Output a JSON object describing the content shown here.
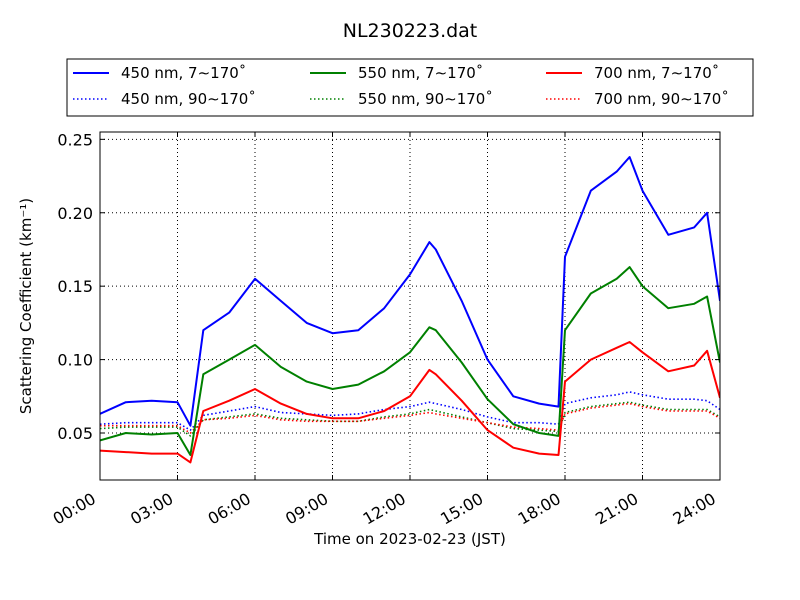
{
  "chart_data": {
    "type": "line",
    "title": "NL230223.dat",
    "xlabel": "Time on 2023-02-23 (JST)",
    "ylabel": "Scattering Coefficient (km⁻¹)",
    "xlim": [
      "00:00",
      "24:00"
    ],
    "ylim": [
      0.018,
      0.255
    ],
    "x_ticks": [
      "00:00",
      "03:00",
      "06:00",
      "09:00",
      "12:00",
      "15:00",
      "18:00",
      "21:00",
      "24:00"
    ],
    "y_ticks": [
      "0.05",
      "0.10",
      "0.15",
      "0.20",
      "0.25"
    ],
    "grid": true,
    "legend_position": "top",
    "x": [
      "00:00",
      "01:00",
      "02:00",
      "03:00",
      "03:30",
      "04:00",
      "05:00",
      "06:00",
      "07:00",
      "08:00",
      "09:00",
      "10:00",
      "11:00",
      "12:00",
      "12:45",
      "13:00",
      "14:00",
      "15:00",
      "16:00",
      "17:00",
      "17:45",
      "18:00",
      "19:00",
      "20:00",
      "20:30",
      "21:00",
      "22:00",
      "23:00",
      "23:30",
      "24:00"
    ],
    "series": [
      {
        "name": "450 nm, 7∼170˚",
        "color": "#0000ff",
        "style": "solid",
        "values": [
          0.063,
          0.071,
          0.072,
          0.071,
          0.055,
          0.12,
          0.132,
          0.155,
          0.14,
          0.125,
          0.118,
          0.12,
          0.135,
          0.158,
          0.18,
          0.175,
          0.14,
          0.1,
          0.075,
          0.07,
          0.068,
          0.17,
          0.215,
          0.228,
          0.238,
          0.215,
          0.185,
          0.19,
          0.2,
          0.14
        ]
      },
      {
        "name": "450 nm, 90∼170˚",
        "color": "#0000ff",
        "style": "dotted",
        "values": [
          0.056,
          0.057,
          0.057,
          0.057,
          0.052,
          0.062,
          0.065,
          0.068,
          0.064,
          0.063,
          0.062,
          0.063,
          0.066,
          0.068,
          0.071,
          0.07,
          0.066,
          0.061,
          0.057,
          0.057,
          0.056,
          0.07,
          0.074,
          0.076,
          0.078,
          0.076,
          0.073,
          0.073,
          0.072,
          0.066
        ]
      },
      {
        "name": "550 nm, 7∼170˚",
        "color": "#008000",
        "style": "solid",
        "values": [
          0.045,
          0.05,
          0.049,
          0.05,
          0.035,
          0.09,
          0.1,
          0.11,
          0.095,
          0.085,
          0.08,
          0.083,
          0.092,
          0.105,
          0.122,
          0.12,
          0.098,
          0.073,
          0.056,
          0.05,
          0.048,
          0.12,
          0.145,
          0.155,
          0.163,
          0.15,
          0.135,
          0.138,
          0.143,
          0.098
        ]
      },
      {
        "name": "550 nm, 90∼170˚",
        "color": "#008000",
        "style": "dotted",
        "values": [
          0.053,
          0.054,
          0.054,
          0.054,
          0.048,
          0.059,
          0.061,
          0.063,
          0.06,
          0.059,
          0.058,
          0.058,
          0.061,
          0.063,
          0.066,
          0.065,
          0.061,
          0.057,
          0.053,
          0.052,
          0.051,
          0.064,
          0.068,
          0.07,
          0.071,
          0.069,
          0.066,
          0.066,
          0.066,
          0.061
        ]
      },
      {
        "name": "700 nm, 7∼170˚",
        "color": "#ff0000",
        "style": "solid",
        "values": [
          0.038,
          0.037,
          0.036,
          0.036,
          0.03,
          0.065,
          0.072,
          0.08,
          0.07,
          0.063,
          0.06,
          0.06,
          0.065,
          0.075,
          0.093,
          0.09,
          0.072,
          0.052,
          0.04,
          0.036,
          0.035,
          0.085,
          0.1,
          0.108,
          0.112,
          0.105,
          0.092,
          0.096,
          0.106,
          0.074
        ]
      },
      {
        "name": "700 nm, 90∼170˚",
        "color": "#ff0000",
        "style": "dotted",
        "values": [
          0.055,
          0.055,
          0.055,
          0.055,
          0.05,
          0.059,
          0.06,
          0.062,
          0.059,
          0.058,
          0.058,
          0.058,
          0.06,
          0.062,
          0.064,
          0.063,
          0.06,
          0.057,
          0.054,
          0.053,
          0.052,
          0.063,
          0.067,
          0.069,
          0.07,
          0.068,
          0.065,
          0.065,
          0.065,
          0.06
        ]
      }
    ]
  }
}
